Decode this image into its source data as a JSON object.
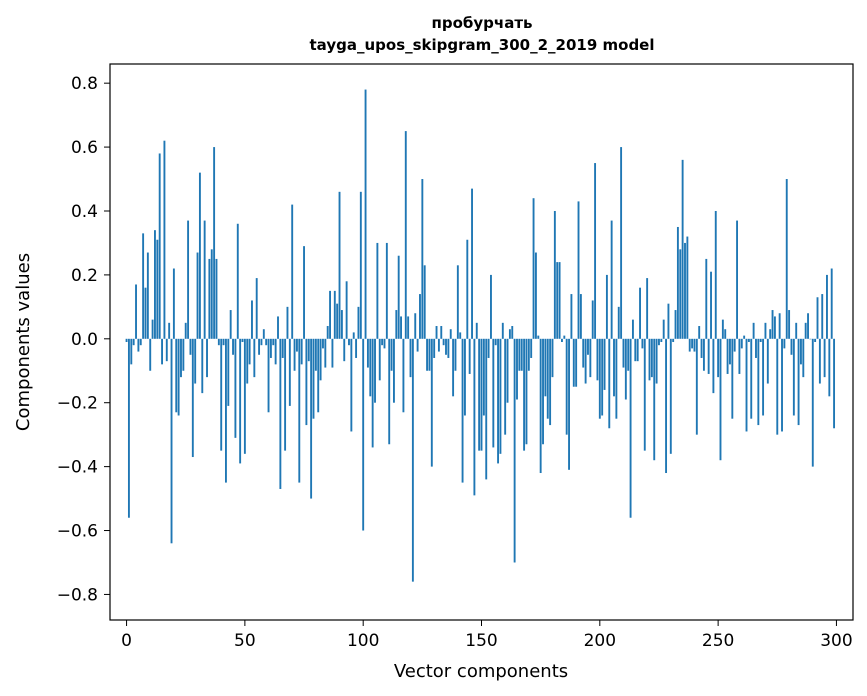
{
  "chart_data": {
    "type": "bar",
    "title": "пробурчать",
    "subtitle": "tayga_upos_skipgram_300_2_2019 model",
    "xlabel": "Vector components",
    "ylabel": "Components values",
    "xlim": [
      -7,
      307
    ],
    "ylim": [
      -0.88,
      0.86
    ],
    "xticks": [
      0,
      50,
      100,
      150,
      200,
      250,
      300
    ],
    "xtick_labels": [
      "0",
      "50",
      "100",
      "150",
      "200",
      "250",
      "300"
    ],
    "yticks": [
      -0.8,
      -0.6,
      -0.4,
      -0.2,
      0.0,
      0.2,
      0.4,
      0.6,
      0.8
    ],
    "ytick_labels": [
      "−0.8",
      "−0.6",
      "−0.4",
      "−0.2",
      "0.0",
      "0.2",
      "0.4",
      "0.6",
      "0.8"
    ],
    "grid": false,
    "color": "#1f77b4",
    "values": [
      -0.01,
      -0.56,
      -0.08,
      -0.02,
      0.17,
      -0.04,
      -0.02,
      0.33,
      0.16,
      0.27,
      -0.1,
      0.06,
      0.34,
      0.31,
      0.58,
      -0.08,
      0.62,
      -0.07,
      0.05,
      -0.64,
      0.22,
      -0.23,
      -0.24,
      -0.12,
      -0.1,
      0.05,
      0.37,
      -0.05,
      -0.37,
      -0.14,
      0.27,
      0.52,
      -0.17,
      0.37,
      -0.12,
      0.25,
      0.28,
      0.6,
      0.25,
      -0.02,
      -0.35,
      -0.02,
      -0.45,
      -0.21,
      0.09,
      -0.05,
      -0.31,
      0.36,
      -0.39,
      -0.01,
      -0.36,
      -0.14,
      -0.08,
      0.12,
      -0.12,
      0.19,
      -0.05,
      -0.02,
      0.03,
      -0.02,
      -0.23,
      -0.06,
      -0.02,
      -0.08,
      0.07,
      -0.47,
      -0.06,
      -0.35,
      0.1,
      -0.21,
      0.42,
      -0.1,
      -0.04,
      -0.45,
      -0.08,
      0.29,
      -0.27,
      -0.07,
      -0.5,
      -0.25,
      -0.1,
      -0.23,
      -0.13,
      -0.03,
      -0.09,
      0.04,
      0.15,
      -0.09,
      0.15,
      0.11,
      0.46,
      0.09,
      -0.07,
      0.18,
      -0.02,
      -0.29,
      0.02,
      -0.06,
      0.1,
      0.46,
      -0.6,
      0.78,
      -0.09,
      -0.18,
      -0.34,
      -0.2,
      0.3,
      -0.13,
      -0.02,
      -0.03,
      0.3,
      -0.33,
      -0.1,
      -0.2,
      0.09,
      0.26,
      0.07,
      -0.23,
      0.65,
      0.07,
      -0.12,
      -0.76,
      0.08,
      -0.04,
      0.14,
      0.5,
      0.23,
      -0.1,
      -0.1,
      -0.4,
      -0.06,
      0.04,
      -0.04,
      0.04,
      -0.02,
      -0.05,
      -0.06,
      0.03,
      -0.18,
      -0.1,
      0.23,
      0.02,
      -0.45,
      -0.24,
      0.31,
      -0.11,
      0.47,
      -0.49,
      0.05,
      -0.35,
      -0.35,
      -0.24,
      -0.44,
      -0.06,
      0.2,
      -0.34,
      -0.02,
      -0.39,
      -0.36,
      0.05,
      -0.3,
      -0.2,
      0.03,
      0.04,
      -0.7,
      -0.19,
      -0.1,
      -0.1,
      -0.35,
      -0.33,
      -0.1,
      -0.06,
      0.44,
      0.27,
      0.01,
      -0.42,
      -0.33,
      -0.18,
      -0.25,
      -0.27,
      -0.12,
      0.4,
      0.24,
      0.24,
      -0.01,
      0.01,
      -0.3,
      -0.41,
      0.14,
      -0.15,
      -0.15,
      0.43,
      0.14,
      -0.09,
      -0.14,
      -0.05,
      -0.12,
      0.12,
      0.55,
      -0.13,
      -0.25,
      -0.24,
      -0.16,
      0.2,
      -0.28,
      0.37,
      -0.18,
      -0.25,
      0.1,
      0.6,
      -0.09,
      -0.19,
      -0.1,
      -0.56,
      0.06,
      -0.07,
      -0.07,
      0.16,
      -0.03,
      -0.35,
      0.19,
      -0.13,
      -0.12,
      -0.38,
      -0.14,
      -0.02,
      -0.01,
      0.06,
      -0.42,
      0.11,
      -0.36,
      -0.01,
      0.09,
      0.35,
      0.28,
      0.56,
      0.3,
      0.32,
      -0.04,
      -0.03,
      -0.04,
      -0.3,
      0.04,
      -0.06,
      -0.1,
      0.25,
      -0.11,
      0.21,
      -0.17,
      0.4,
      -0.12,
      -0.38,
      0.06,
      0.03,
      -0.11,
      -0.08,
      -0.25,
      -0.04,
      0.37,
      -0.11,
      -0.03,
      0.01,
      -0.29,
      -0.01,
      -0.25,
      0.05,
      -0.06,
      -0.27,
      -0.01,
      -0.24,
      0.05,
      -0.14,
      0.03,
      0.09,
      0.07,
      -0.3,
      0.08,
      -0.29,
      -0.03,
      0.5,
      0.09,
      -0.05,
      -0.24,
      0.05,
      -0.27,
      -0.08,
      -0.12,
      0.05,
      0.08,
      0.0,
      -0.4,
      -0.01,
      0.13,
      -0.14,
      0.14,
      -0.12,
      0.2,
      -0.18,
      0.22,
      -0.28
    ]
  }
}
